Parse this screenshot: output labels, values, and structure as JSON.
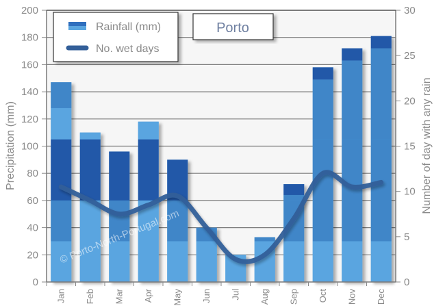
{
  "chart_data": {
    "type": "bar",
    "title": "Porto",
    "categories": [
      "Jan",
      "Feb",
      "Mar",
      "Apr",
      "May",
      "Jun",
      "Jul",
      "Aug",
      "Sep",
      "Oct",
      "Nov",
      "Dec"
    ],
    "series": [
      {
        "name": "Rainfall (mm)",
        "type": "bar",
        "axis": "left",
        "values": [
          147,
          110,
          96,
          118,
          90,
          40,
          20,
          33,
          72,
          158,
          172,
          181
        ]
      },
      {
        "name": "No. wet days",
        "type": "line",
        "axis": "right",
        "values": [
          10.5,
          9,
          7.5,
          8.5,
          9.5,
          6,
          2.5,
          3,
          7,
          12,
          10.5,
          11
        ]
      }
    ],
    "ylabel": "Precipitation (mm)",
    "ylim": [
      0,
      200
    ],
    "yticks": [
      0,
      20,
      40,
      60,
      80,
      100,
      120,
      140,
      160,
      180,
      200
    ],
    "y2label": "Number of day with any rain",
    "y2lim": [
      0,
      30
    ],
    "y2ticks": [
      0,
      5,
      10,
      15,
      20,
      25,
      30
    ],
    "grid": true,
    "legend_position": "top-left",
    "watermark": "© Porto-North-Portugal.com",
    "colors": {
      "bar_dark": "#2459a8",
      "bar_mid": "#3f86c8",
      "bar_light": "#5aa5e0",
      "line": "#335f99",
      "plot_bg": "#f6f6f6"
    }
  }
}
